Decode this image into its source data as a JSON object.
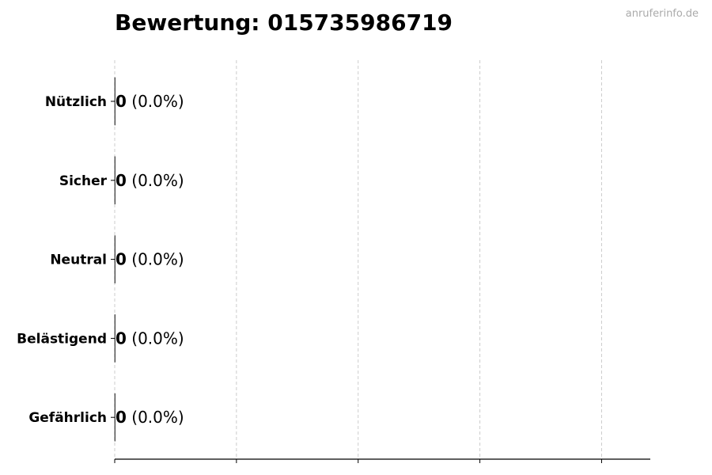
{
  "chart_data": {
    "type": "bar",
    "orientation": "horizontal",
    "title": "Bewertung: 015735986719",
    "watermark": "anruferinfo.de",
    "categories": [
      "Nützlich",
      "Sicher",
      "Neutral",
      "Belästigend",
      "Gefährlich"
    ],
    "values": [
      0,
      0,
      0,
      0,
      0
    ],
    "labels": [
      {
        "count": "0",
        "pct": "(0.0%)"
      },
      {
        "count": "0",
        "pct": "(0.0%)"
      },
      {
        "count": "0",
        "pct": "(0.0%)"
      },
      {
        "count": "0",
        "pct": "(0.0%)"
      },
      {
        "count": "0",
        "pct": "(0.0%)"
      }
    ],
    "xlim": [
      0,
      4.4
    ],
    "xticks": [
      0,
      1,
      2,
      3,
      4
    ],
    "xtick_labels_shown": false,
    "grid": "vertical dashed",
    "colors": {
      "bar_edge": "#333333",
      "grid": "#cccccc",
      "watermark": "#aaaaaa"
    }
  }
}
